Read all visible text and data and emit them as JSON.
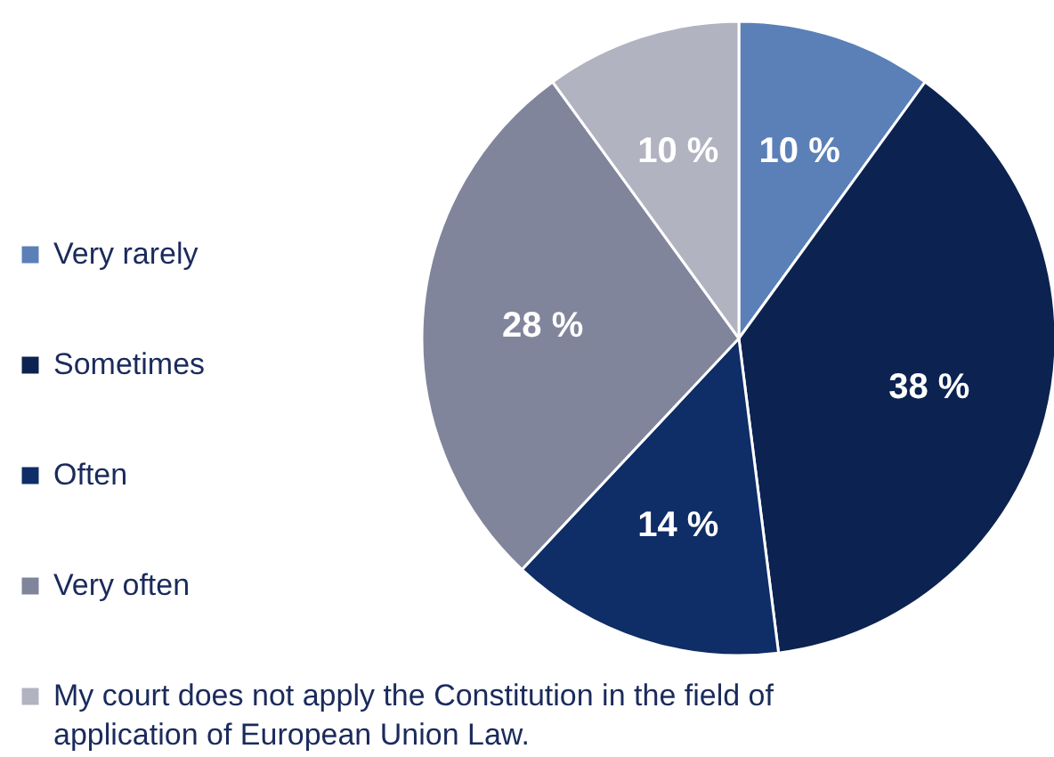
{
  "chart_data": {
    "type": "pie",
    "categories": [
      "Very rarely",
      "Sometimes",
      "Often",
      "Very often",
      "My court does not apply the Constitution in the field of application of European Union Law."
    ],
    "values": [
      10,
      38,
      14,
      28,
      10
    ],
    "value_labels": [
      "10 %",
      "38 %",
      "14 %",
      "28 %",
      "10 %"
    ],
    "colors": [
      "#5b80b8",
      "#0c2250",
      "#0f2d66",
      "#80859b",
      "#b1b3c1"
    ],
    "legend": "left"
  }
}
